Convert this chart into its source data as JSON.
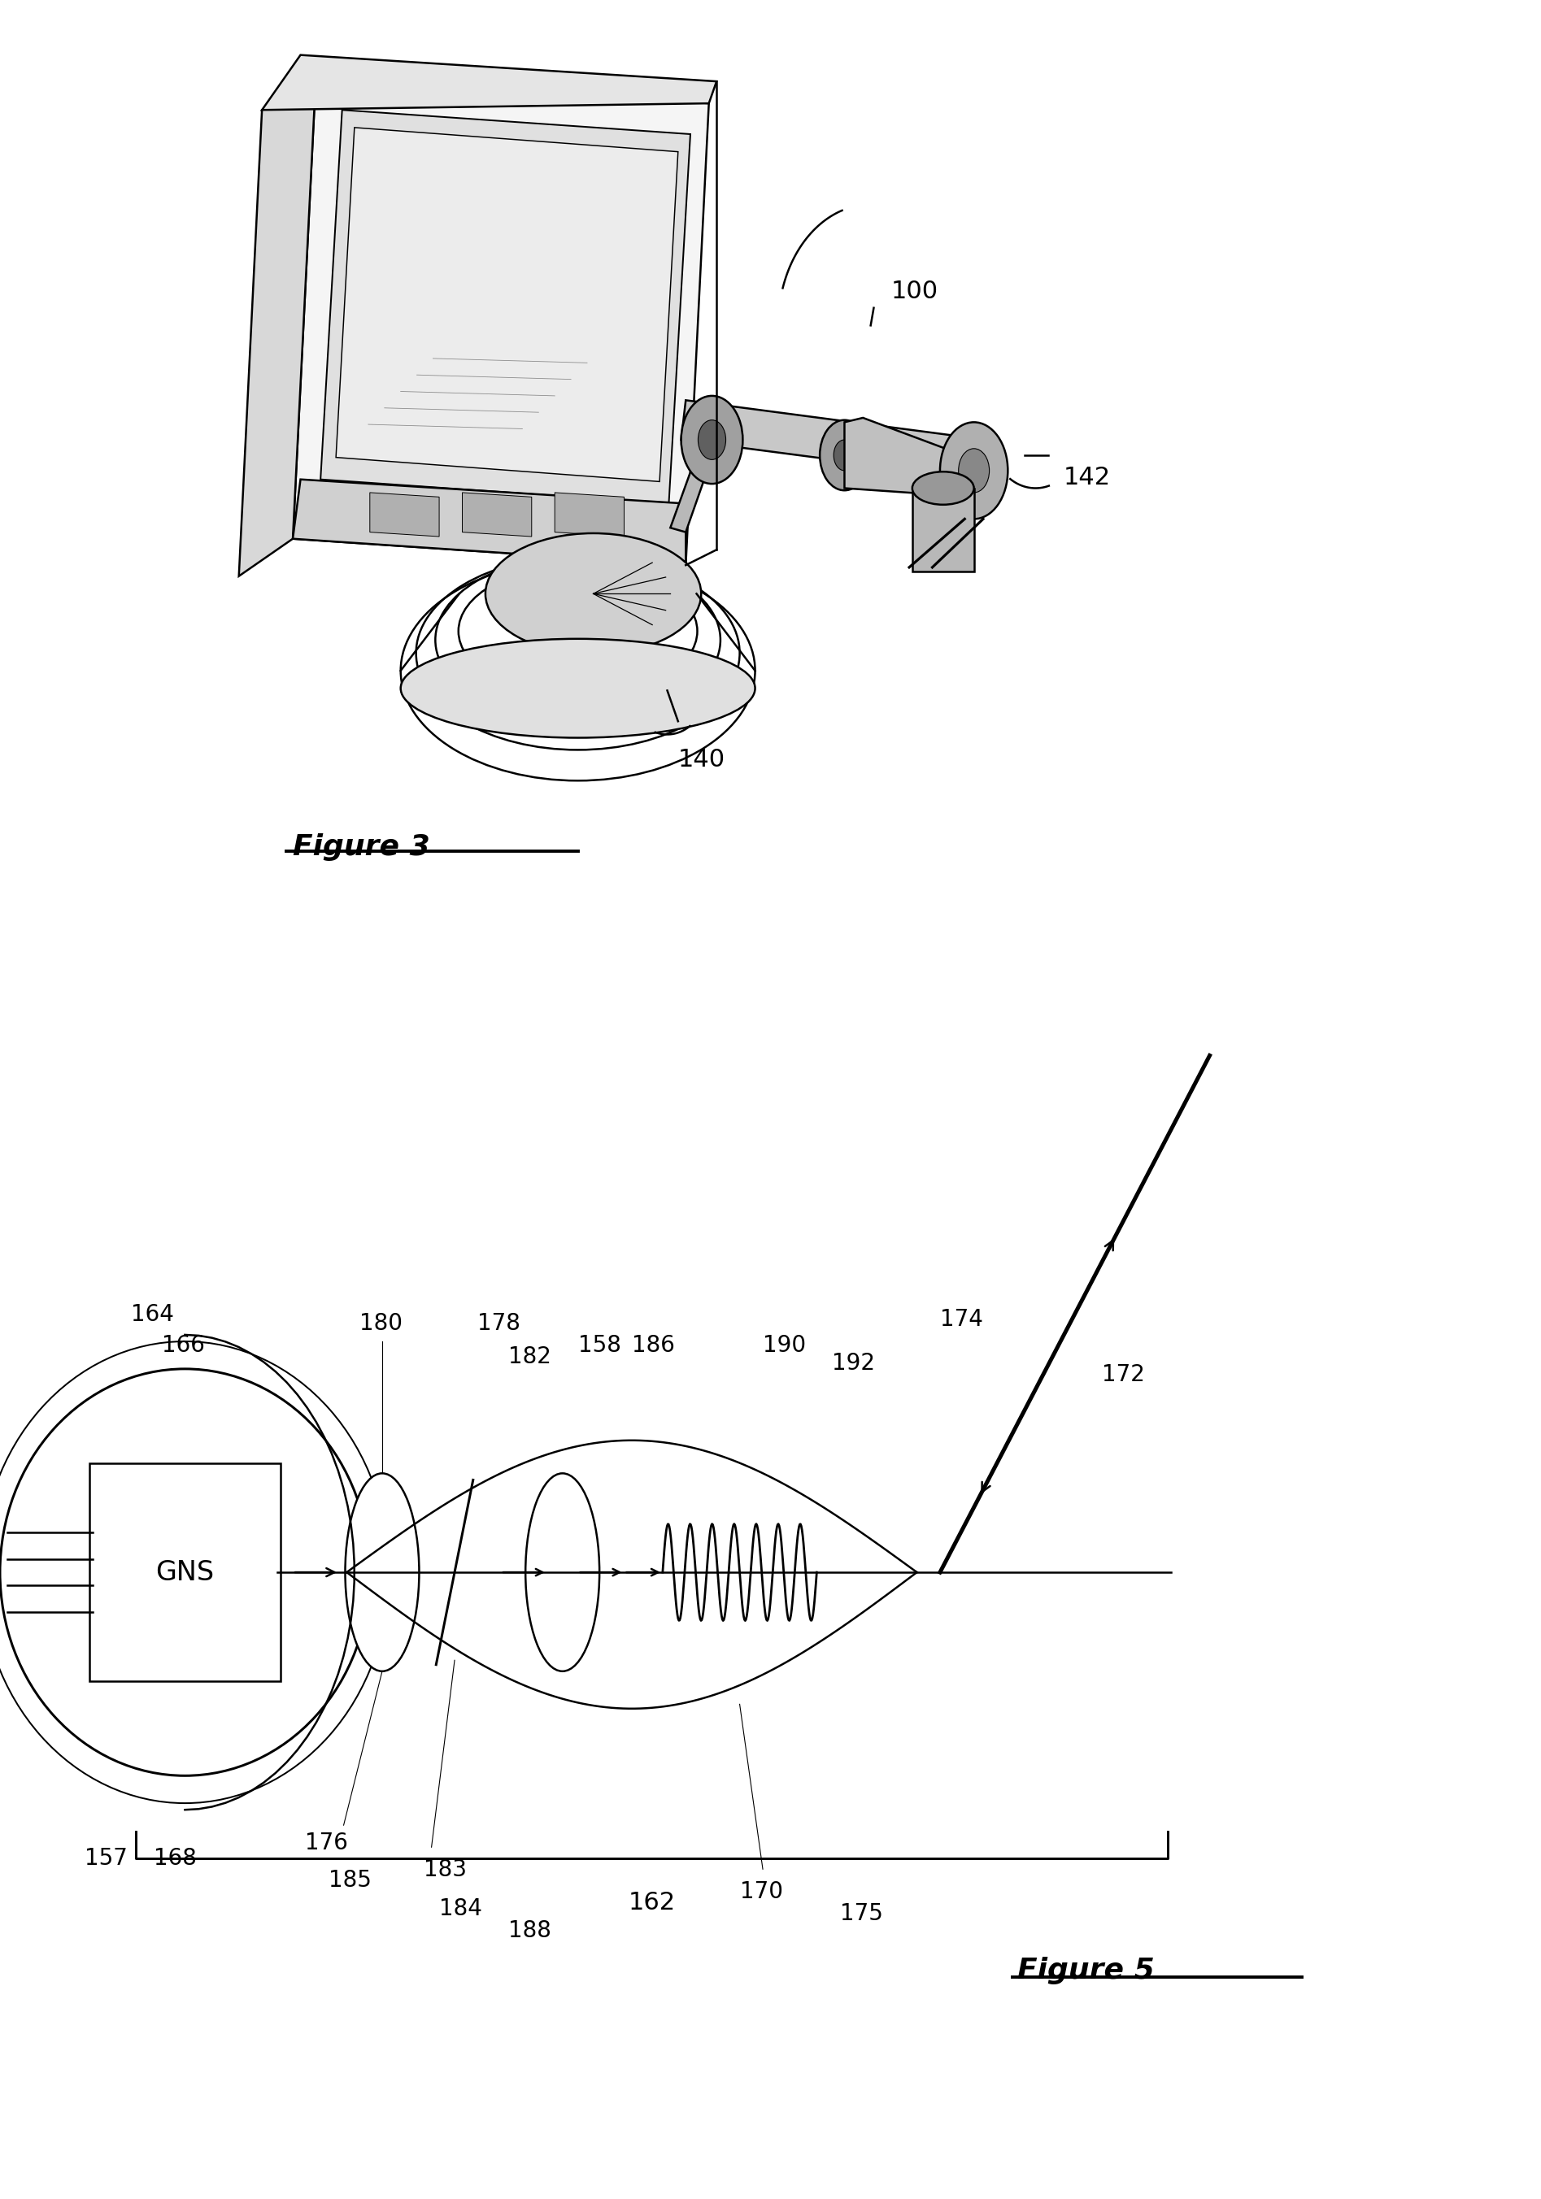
{
  "background": "#ffffff",
  "line_color": "#000000",
  "fig3_caption": "Figure 3",
  "fig5_caption": "Figure 5",
  "label_fontsize": 20,
  "caption_fontsize": 26
}
